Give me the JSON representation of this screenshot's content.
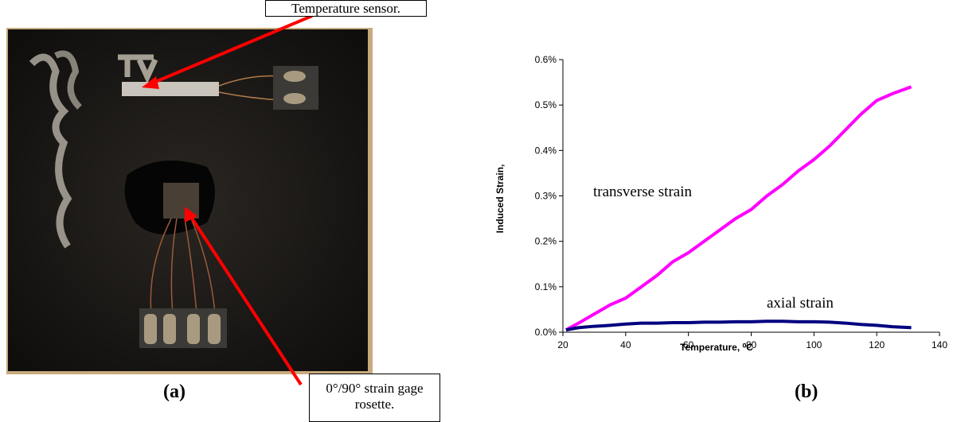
{
  "panel_a": {
    "label": "(a)",
    "annotations": [
      "Temperature sensor.",
      "0°/90° strain gage rosette."
    ]
  },
  "panel_b": {
    "label": "(b)"
  },
  "chart_data": {
    "type": "line",
    "x_label": "Temperature, ⁰C",
    "y_label": "Induced Strain,",
    "x": [
      21,
      25,
      30,
      35,
      40,
      45,
      50,
      55,
      60,
      65,
      70,
      75,
      80,
      85,
      90,
      95,
      100,
      105,
      110,
      115,
      120,
      125,
      131
    ],
    "series": [
      {
        "name": "transverse strain",
        "color": "#ff00ff",
        "values": [
          0.005,
          0.02,
          0.04,
          0.06,
          0.075,
          0.1,
          0.125,
          0.155,
          0.175,
          0.2,
          0.225,
          0.25,
          0.27,
          0.3,
          0.325,
          0.355,
          0.38,
          0.41,
          0.445,
          0.48,
          0.51,
          0.525,
          0.54
        ]
      },
      {
        "name": "axial strain",
        "color": "#000080",
        "values": [
          0.005,
          0.01,
          0.013,
          0.015,
          0.018,
          0.02,
          0.02,
          0.021,
          0.021,
          0.022,
          0.022,
          0.023,
          0.023,
          0.024,
          0.024,
          0.023,
          0.023,
          0.022,
          0.02,
          0.017,
          0.015,
          0.012,
          0.01
        ]
      }
    ],
    "xlim": [
      20,
      140
    ],
    "xticks": [
      20,
      40,
      60,
      80,
      100,
      120,
      140
    ],
    "ylim": [
      0,
      0.6
    ],
    "yticks": [
      {
        "value": 0,
        "label": "0.0%"
      },
      {
        "value": 0.1,
        "label": "0.1%"
      },
      {
        "value": 0.2,
        "label": "0.2%"
      },
      {
        "value": 0.3,
        "label": "0.3%"
      },
      {
        "value": 0.4,
        "label": "0.4%"
      },
      {
        "value": 0.5,
        "label": "0.5%"
      },
      {
        "value": 0.6,
        "label": "0.6%"
      }
    ]
  }
}
